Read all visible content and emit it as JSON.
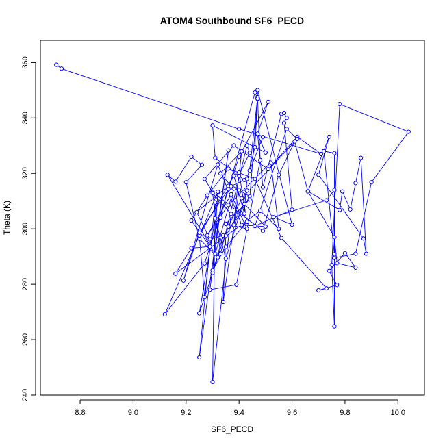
{
  "chart_data": {
    "type": "scatter",
    "title": "ATOM4 Southbound SF6_PECD",
    "xlabel": "SF6_PECD",
    "ylabel": "Theta (K)",
    "xlim": [
      8.65,
      10.1
    ],
    "ylim": [
      240,
      368
    ],
    "xticks": [
      8.8,
      9.0,
      9.2,
      9.4,
      9.6,
      9.8,
      10.0
    ],
    "xtick_labels": [
      "8.8",
      "9.0",
      "9.2",
      "9.4",
      "9.6",
      "9.8",
      "10.0"
    ],
    "yticks": [
      240,
      260,
      280,
      300,
      320,
      340,
      360
    ],
    "ytick_labels": [
      "240",
      "260",
      "280",
      "300",
      "320",
      "340",
      "360"
    ],
    "grid": false,
    "legend": "none",
    "marker": "open-circle",
    "line": true,
    "color": "#0000ff",
    "series": [
      {
        "points": [
          [
            8.71,
            359.2
          ],
          [
            8.73,
            357.8
          ],
          [
            9.4,
            336.0
          ],
          [
            9.71,
            327.0
          ],
          [
            9.62,
            333.2
          ],
          [
            9.51,
            321.5
          ],
          [
            9.38,
            330.1
          ],
          [
            9.27,
            318.0
          ],
          [
            9.3,
            313.3
          ],
          [
            9.49,
            299.2
          ],
          [
            9.55,
            319.5
          ],
          [
            9.61,
            331.5
          ],
          [
            9.66,
            313.5
          ],
          [
            9.78,
            306.8
          ],
          [
            9.79,
            313.5
          ],
          [
            9.82,
            307.0
          ],
          [
            9.84,
            316.5
          ],
          [
            9.86,
            325.6
          ],
          [
            9.88,
            291.0
          ],
          [
            9.87,
            296.5
          ],
          [
            9.7,
            319.5
          ],
          [
            9.74,
            333.2
          ],
          [
            9.66,
            313.5
          ],
          [
            9.76,
            297.0
          ],
          [
            9.77,
            287.6
          ],
          [
            9.84,
            286.0
          ],
          [
            9.8,
            291.2
          ],
          [
            9.74,
            284.8
          ],
          [
            9.77,
            279.7
          ],
          [
            9.7,
            277.8
          ],
          [
            9.73,
            278.5
          ],
          [
            9.56,
            296.7
          ],
          [
            9.46,
            318.0
          ],
          [
            9.36,
            321.7
          ],
          [
            9.28,
            312.0
          ],
          [
            9.22,
            303.0
          ],
          [
            9.31,
            291.0
          ],
          [
            9.38,
            314.5
          ],
          [
            9.43,
            313.8
          ],
          [
            9.35,
            289.2
          ],
          [
            9.31,
            303.8
          ],
          [
            9.25,
            269.5
          ],
          [
            9.32,
            289.7
          ],
          [
            9.25,
            296.4
          ],
          [
            9.2,
            316.8
          ],
          [
            9.26,
            323.1
          ],
          [
            9.22,
            326.0
          ],
          [
            9.16,
            317.0
          ],
          [
            9.13,
            319.5
          ],
          [
            9.29,
            294.2
          ],
          [
            9.33,
            304.0
          ],
          [
            9.36,
            315.5
          ],
          [
            9.24,
            306.0
          ],
          [
            9.29,
            296.2
          ],
          [
            9.34,
            297.6
          ],
          [
            9.3,
            284.1
          ],
          [
            9.32,
            313.4
          ],
          [
            9.25,
            297.3
          ],
          [
            9.27,
            275.3
          ],
          [
            9.31,
            309.5
          ],
          [
            9.3,
            244.7
          ],
          [
            9.37,
            305.4
          ],
          [
            9.3,
            312.9
          ],
          [
            9.33,
            291.0
          ],
          [
            9.43,
            330.0
          ],
          [
            9.44,
            327.4
          ],
          [
            9.4,
            319.3
          ],
          [
            9.41,
            328.0
          ],
          [
            9.33,
            320.0
          ],
          [
            9.37,
            315.4
          ],
          [
            9.42,
            317.6
          ],
          [
            9.31,
            325.6
          ],
          [
            9.3,
            337.3
          ],
          [
            9.5,
            327.5
          ],
          [
            9.47,
            334.1
          ],
          [
            9.49,
            333.1
          ],
          [
            9.44,
            321.0
          ],
          [
            9.47,
            347.5
          ],
          [
            9.46,
            329.5
          ],
          [
            9.43,
            318.0
          ],
          [
            9.42,
            305.5
          ],
          [
            9.38,
            319.2
          ],
          [
            9.25,
            297.6
          ],
          [
            9.12,
            269.2
          ],
          [
            9.27,
            287.5
          ],
          [
            9.4,
            326.0
          ],
          [
            9.51,
            345.8
          ],
          [
            9.47,
            334.3
          ],
          [
            9.49,
            315.0
          ],
          [
            9.56,
            341.5
          ],
          [
            9.57,
            341.8
          ],
          [
            9.58,
            340.0
          ],
          [
            9.57,
            338.2
          ],
          [
            9.6,
            306.9
          ],
          [
            9.46,
            301.0
          ],
          [
            9.58,
            336.0
          ],
          [
            9.62,
            332.4
          ],
          [
            9.41,
            311.0
          ],
          [
            9.36,
            300.8
          ],
          [
            9.3,
            285.0
          ],
          [
            9.35,
            293.5
          ],
          [
            9.43,
            302.5
          ],
          [
            9.4,
            320.3
          ],
          [
            9.38,
            301.4
          ],
          [
            9.44,
            311.7
          ],
          [
            9.4,
            314.0
          ],
          [
            9.34,
            273.6
          ],
          [
            9.35,
            297.5
          ],
          [
            9.42,
            309.0
          ],
          [
            9.5,
            300.8
          ],
          [
            9.41,
            301.4
          ],
          [
            9.32,
            323.2
          ],
          [
            9.19,
            281.3
          ],
          [
            9.25,
            298.6
          ],
          [
            9.36,
            314.3
          ],
          [
            9.46,
            349.2
          ],
          [
            9.47,
            346.9
          ],
          [
            9.48,
            324.8
          ],
          [
            9.39,
            279.8
          ],
          [
            9.29,
            278.0
          ],
          [
            9.36,
            328.3
          ],
          [
            9.25,
            253.6
          ],
          [
            9.29,
            293.6
          ],
          [
            9.22,
            293.0
          ],
          [
            9.16,
            283.8
          ],
          [
            9.48,
            306.5
          ],
          [
            9.55,
            300.0
          ],
          [
            9.52,
            323.9
          ],
          [
            9.36,
            308.6
          ],
          [
            9.28,
            297.6
          ],
          [
            9.37,
            312.4
          ],
          [
            9.43,
            300.0
          ],
          [
            9.35,
            301.8
          ],
          [
            9.44,
            310.6
          ],
          [
            9.47,
            347.0
          ],
          [
            9.47,
            350.1
          ],
          [
            9.6,
            301.5
          ],
          [
            9.53,
            304.2
          ],
          [
            9.73,
            310.3
          ],
          [
            9.76,
            314.0
          ],
          [
            9.76,
            290.8
          ],
          [
            9.72,
            328.0
          ],
          [
            9.76,
            327.3
          ],
          [
            9.76,
            264.8
          ],
          [
            9.75,
            287.0
          ],
          [
            9.78,
            345.0
          ],
          [
            10.04,
            335.0
          ],
          [
            9.9,
            316.8
          ],
          [
            9.84,
            291.0
          ],
          [
            9.76,
            289.5
          ]
        ]
      }
    ]
  }
}
